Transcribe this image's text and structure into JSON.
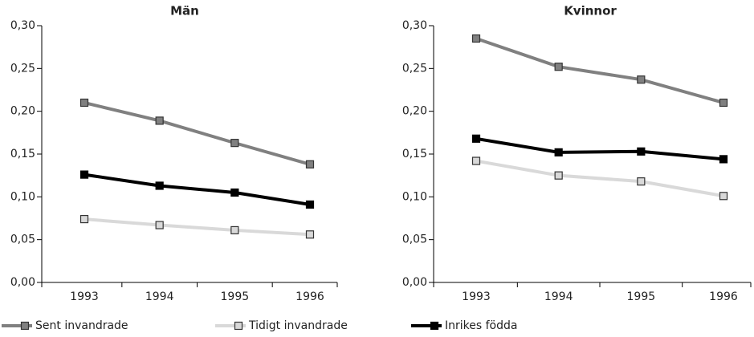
{
  "chart_data": [
    {
      "type": "line",
      "title": "Män",
      "categories": [
        "1993",
        "1994",
        "1995",
        "1996"
      ],
      "ylim": [
        0,
        0.3
      ],
      "yticks": [
        {
          "value": 0,
          "label": "0,00"
        },
        {
          "value": 0.05,
          "label": "0,05"
        },
        {
          "value": 0.1,
          "label": "0,10"
        },
        {
          "value": 0.15,
          "label": "0,15"
        },
        {
          "value": 0.2,
          "label": "0,20"
        },
        {
          "value": 0.25,
          "label": "0,25"
        },
        {
          "value": 0.3,
          "label": "0,30"
        }
      ],
      "series": [
        {
          "name": "Sent invandrade",
          "color": "#808080",
          "values": [
            0.21,
            0.189,
            0.163,
            0.138
          ]
        },
        {
          "name": "Tidigt invandrade",
          "color": "#d9d9d9",
          "values": [
            0.074,
            0.067,
            0.061,
            0.056
          ]
        },
        {
          "name": "Inrikes födda",
          "color": "#000000",
          "values": [
            0.126,
            0.113,
            0.105,
            0.091
          ]
        }
      ]
    },
    {
      "type": "line",
      "title": "Kvinnor",
      "categories": [
        "1993",
        "1994",
        "1995",
        "1996"
      ],
      "ylim": [
        0,
        0.3
      ],
      "yticks": [
        {
          "value": 0,
          "label": "0,00"
        },
        {
          "value": 0.05,
          "label": "0,05"
        },
        {
          "value": 0.1,
          "label": "0,10"
        },
        {
          "value": 0.15,
          "label": "0,15"
        },
        {
          "value": 0.2,
          "label": "0,20"
        },
        {
          "value": 0.25,
          "label": "0,25"
        },
        {
          "value": 0.3,
          "label": "0,30"
        }
      ],
      "series": [
        {
          "name": "Sent invandrade",
          "color": "#808080",
          "values": [
            0.285,
            0.252,
            0.237,
            0.21
          ]
        },
        {
          "name": "Tidigt invandrade",
          "color": "#d9d9d9",
          "values": [
            0.142,
            0.125,
            0.118,
            0.101
          ]
        },
        {
          "name": "Inrikes födda",
          "color": "#000000",
          "values": [
            0.168,
            0.152,
            0.153,
            0.144
          ]
        }
      ]
    }
  ]
}
